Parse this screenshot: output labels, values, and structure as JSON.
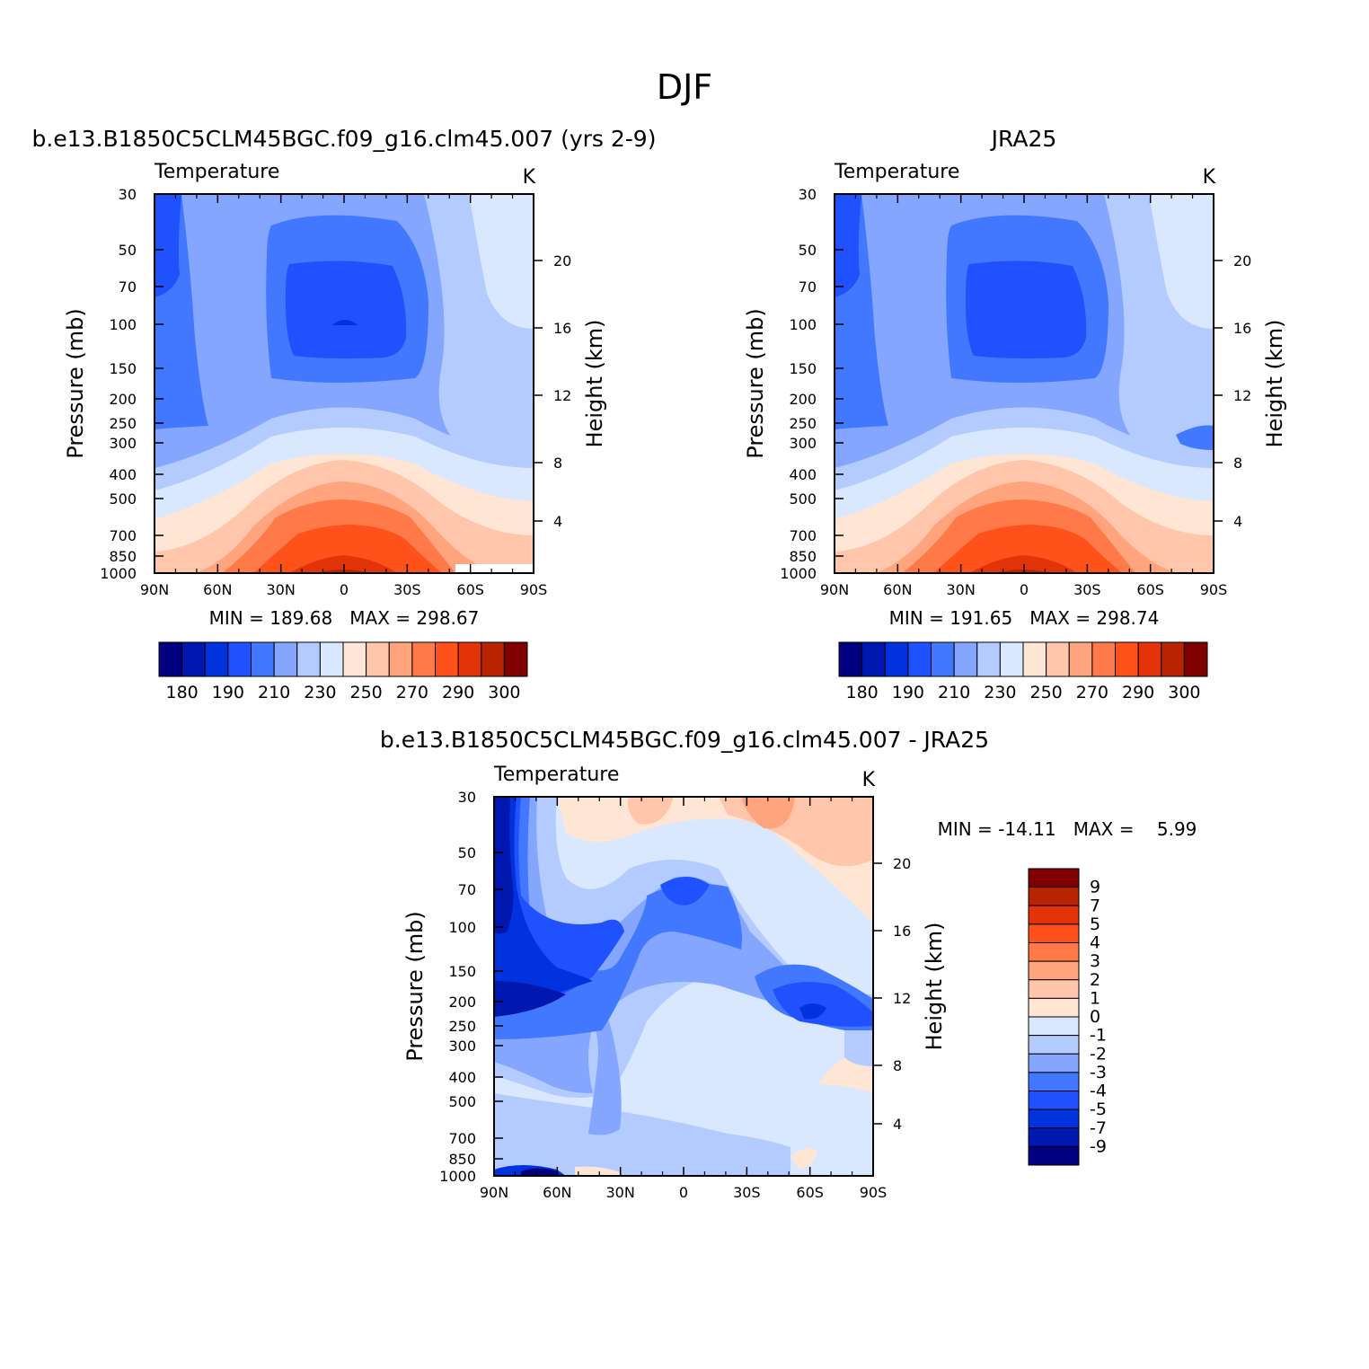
{
  "title": "DJF",
  "pressure_ticks": [
    "30",
    "50",
    "70",
    "100",
    "150",
    "200",
    "250",
    "300",
    "400",
    "500",
    "700",
    "850",
    "1000"
  ],
  "lat_ticks": [
    "90N",
    "60N",
    "30N",
    "0",
    "30S",
    "60S",
    "90S"
  ],
  "height_ticks": [
    "20",
    "16",
    "12",
    "8",
    "4"
  ],
  "y_label": "Pressure (mb)",
  "y2_label": "Height (km)",
  "panels": [
    {
      "subtitle": "b.e13.B1850C5CLM45BGC.f09_g16.clm45.007 (yrs 2-9)",
      "left_label": "Temperature",
      "right_label": "K",
      "minmax": "MIN = 189.68   MAX = 298.67"
    },
    {
      "subtitle": "JRA25",
      "left_label": "Temperature",
      "right_label": "K",
      "minmax": "MIN = 191.65   MAX = 298.74"
    },
    {
      "subtitle": "b.e13.B1850C5CLM45BGC.f09_g16.clm45.007 - JRA25",
      "left_label": "Temperature",
      "right_label": "K",
      "minmax": "MIN = -14.11   MAX =    5.99"
    }
  ],
  "colorbar_temp": {
    "colors": [
      "#000080",
      "#0018b0",
      "#0033dd",
      "#1f51ff",
      "#4277ff",
      "#84a6ff",
      "#b3cbff",
      "#d9e8ff",
      "#ffe6d4",
      "#ffc6ab",
      "#ffa47c",
      "#ff7a48",
      "#ff521b",
      "#e33309",
      "#b82302",
      "#7e0000"
    ],
    "labels": [
      "180",
      "190",
      "210",
      "230",
      "250",
      "270",
      "290",
      "300"
    ]
  },
  "colorbar_diff": {
    "colors": [
      "#000080",
      "#0018b0",
      "#0033dd",
      "#1f51ff",
      "#4277ff",
      "#84a6ff",
      "#b3cbff",
      "#d9e8ff",
      "#ffe6d4",
      "#ffc6ab",
      "#ffa47c",
      "#ff7a48",
      "#ff521b",
      "#e33309",
      "#b82302",
      "#7e0000"
    ],
    "labels": [
      "-9",
      "-7",
      "-5",
      "-4",
      "-3",
      "-2",
      "-1",
      "0",
      "1",
      "2",
      "3",
      "4",
      "5",
      "7",
      "9"
    ]
  },
  "chart_data": [
    {
      "type": "heatmap",
      "title": "b.e13.B1850C5CLM45BGC.f09_g16.clm45.007 (yrs 2-9)",
      "ylabel": "Pressure (mb)",
      "y2label": "Height (km)",
      "x": [
        "90N",
        "60N",
        "30N",
        "0",
        "30S",
        "60S",
        "90S"
      ],
      "y": [
        30,
        50,
        70,
        100,
        150,
        200,
        250,
        300,
        400,
        500,
        700,
        850,
        1000
      ],
      "units": "K",
      "min": 189.68,
      "max": 298.67
    },
    {
      "type": "heatmap",
      "title": "JRA25",
      "ylabel": "Pressure (mb)",
      "y2label": "Height (km)",
      "x": [
        "90N",
        "60N",
        "30N",
        "0",
        "30S",
        "60S",
        "90S"
      ],
      "y": [
        30,
        50,
        70,
        100,
        150,
        200,
        250,
        300,
        400,
        500,
        700,
        850,
        1000
      ],
      "units": "K",
      "min": 191.65,
      "max": 298.74
    },
    {
      "type": "heatmap",
      "title": "b.e13.B1850C5CLM45BGC.f09_g16.clm45.007 - JRA25",
      "ylabel": "Pressure (mb)",
      "y2label": "Height (km)",
      "x": [
        "90N",
        "60N",
        "30N",
        "0",
        "30S",
        "60S",
        "90S"
      ],
      "y": [
        30,
        50,
        70,
        100,
        150,
        200,
        250,
        300,
        400,
        500,
        700,
        850,
        1000
      ],
      "units": "K",
      "min": -14.11,
      "max": 5.99
    }
  ]
}
